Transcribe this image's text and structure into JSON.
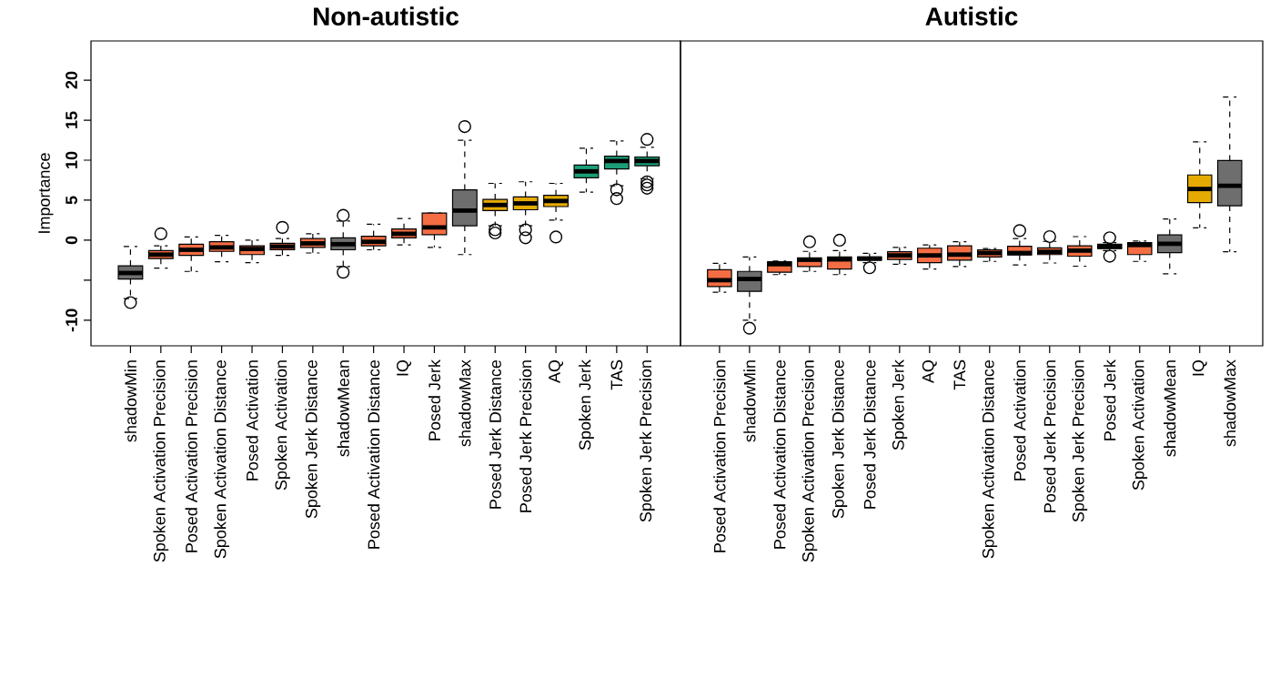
{
  "chart_data": [
    {
      "type": "box",
      "title": "Non-autistic",
      "ylabel": "Importance",
      "categories": [
        "shadowMin",
        "Spoken Activation Precision",
        "Posed Activation Precision",
        "Spoken Activation Distance",
        "Posed Activation",
        "Spoken Activation",
        "Spoken Jerk Distance",
        "shadowMean",
        "Posed Activation Distance",
        "IQ",
        "Posed Jerk",
        "shadowMax",
        "Posed Jerk Distance",
        "Posed Jerk Precision",
        "AQ",
        "Spoken Jerk",
        "TAS",
        "Spoken Jerk Precision"
      ],
      "boxes": [
        {
          "low": -7.3,
          "q1": -4.85,
          "median": -4.1,
          "q3": -3.2,
          "high": -0.8,
          "outliers": [
            -7.8
          ]
        },
        {
          "low": -3.5,
          "q1": -2.3,
          "median": -1.8,
          "q3": -1.3,
          "high": -0.7,
          "outliers": [
            0.8
          ]
        },
        {
          "low": -3.9,
          "q1": -1.9,
          "median": -1.2,
          "q3": -0.5,
          "high": 0.4
        },
        {
          "low": -2.7,
          "q1": -1.4,
          "median": -0.9,
          "q3": -0.2,
          "high": 0.6
        },
        {
          "low": -2.8,
          "q1": -1.8,
          "median": -1.1,
          "q3": -0.7,
          "high": 0.0
        },
        {
          "low": -1.9,
          "q1": -1.2,
          "median": -0.8,
          "q3": -0.4,
          "high": 0.2,
          "outliers": [
            1.6
          ]
        },
        {
          "low": -1.6,
          "q1": -0.9,
          "median": -0.4,
          "q3": 0.2,
          "high": 0.8
        },
        {
          "low": -3.3,
          "q1": -1.2,
          "median": -0.5,
          "q3": 0.3,
          "high": 2.4,
          "outliers": [
            3.1,
            -4.0
          ]
        },
        {
          "low": -1.2,
          "q1": -0.7,
          "median": -0.2,
          "q3": 0.5,
          "high": 2.0
        },
        {
          "low": -0.6,
          "q1": 0.3,
          "median": 0.8,
          "q3": 1.4,
          "high": 2.7
        },
        {
          "low": -0.9,
          "q1": 0.7,
          "median": 1.6,
          "q3": 3.4,
          "high": 3.4
        },
        {
          "low": -1.8,
          "q1": 1.8,
          "median": 3.7,
          "q3": 6.3,
          "high": 12.5,
          "outliers": [
            14.2
          ]
        },
        {
          "low": 1.8,
          "q1": 3.7,
          "median": 4.4,
          "q3": 5.1,
          "high": 7.1,
          "outliers": [
            1.3,
            0.9
          ]
        },
        {
          "low": 1.8,
          "q1": 3.8,
          "median": 4.6,
          "q3": 5.4,
          "high": 7.3,
          "outliers": [
            1.3,
            0.3
          ]
        },
        {
          "low": 2.5,
          "q1": 4.2,
          "median": 4.9,
          "q3": 5.6,
          "high": 7.1,
          "outliers": [
            0.4
          ]
        },
        {
          "low": 6.0,
          "q1": 7.8,
          "median": 8.6,
          "q3": 9.4,
          "high": 11.5
        },
        {
          "low": 6.8,
          "q1": 8.9,
          "median": 9.9,
          "q3": 10.5,
          "high": 12.4,
          "outliers": [
            6.3,
            5.2
          ]
        },
        {
          "low": 7.7,
          "q1": 9.3,
          "median": 9.9,
          "q3": 10.4,
          "high": 11.6,
          "outliers": [
            12.6,
            7.3,
            6.9,
            6.5
          ]
        }
      ],
      "colors": [
        "#6e6e6e",
        "#f46d43",
        "#f46d43",
        "#f46d43",
        "#f46d43",
        "#f46d43",
        "#f46d43",
        "#6e6e6e",
        "#f46d43",
        "#f46d43",
        "#f46d43",
        "#6e6e6e",
        "#e6ab02",
        "#e6ab02",
        "#e6ab02",
        "#1b9e77",
        "#1b9e77",
        "#1b9e77"
      ],
      "ylim": [
        -13.2,
        24.9
      ],
      "yticks": [
        -10,
        {
          "value": -5,
          "label": null
        },
        0,
        5,
        10,
        15,
        20
      ]
    },
    {
      "type": "box",
      "title": "Autistic",
      "categories": [
        "Posed Activation Precision",
        "shadowMin",
        "Posed Activation Distance",
        "Spoken Activation Precision",
        "Spoken Jerk Distance",
        "Posed Jerk Distance",
        "Spoken Jerk",
        "AQ",
        "TAS",
        "Spoken Activation Distance",
        "Posed Activation",
        "Posed Jerk Precision",
        "Spoken Jerk Precision",
        "Posed Jerk",
        "Spoken Activation",
        "shadowMean",
        "IQ",
        "shadowMax"
      ],
      "boxes": [
        {
          "low": -6.5,
          "q1": -5.8,
          "median": -5.0,
          "q3": -3.7,
          "high": -2.9
        },
        {
          "low": -10.0,
          "q1": -6.4,
          "median": -4.85,
          "q3": -3.9,
          "high": -2.1,
          "outliers": [
            -11.0
          ]
        },
        {
          "low": -4.3,
          "q1": -4.0,
          "median": -3.0,
          "q3": -2.7,
          "high": -2.6
        },
        {
          "low": -3.9,
          "q1": -3.3,
          "median": -2.45,
          "q3": -2.2,
          "high": -1.4,
          "outliers": [
            -0.2
          ]
        },
        {
          "low": -4.3,
          "q1": -3.6,
          "median": -2.4,
          "q3": -2.1,
          "high": -1.3,
          "outliers": [
            0.0
          ]
        },
        {
          "low": -2.8,
          "q1": -2.5,
          "median": -2.3,
          "q3": -2.1,
          "high": -1.65,
          "outliers": [
            -3.45
          ]
        },
        {
          "low": -3.0,
          "q1": -2.4,
          "median": -1.9,
          "q3": -1.45,
          "high": -0.9
        },
        {
          "low": -3.6,
          "q1": -2.8,
          "median": -1.9,
          "q3": -1.0,
          "high": -0.6
        },
        {
          "low": -3.3,
          "q1": -2.5,
          "median": -1.8,
          "q3": -0.7,
          "high": -0.2
        },
        {
          "low": -2.65,
          "q1": -2.1,
          "median": -1.6,
          "q3": -1.2,
          "high": -1.05
        },
        {
          "low": -3.1,
          "q1": -1.85,
          "median": -1.6,
          "q3": -0.75,
          "high": 0.2,
          "outliers": [
            1.2
          ]
        },
        {
          "low": -2.85,
          "q1": -1.8,
          "median": -1.45,
          "q3": -0.95,
          "high": -0.15,
          "outliers": [
            0.45
          ]
        },
        {
          "low": -3.25,
          "q1": -2.0,
          "median": -1.3,
          "q3": -0.7,
          "high": 0.45
        },
        {
          "low": -1.3,
          "q1": -1.05,
          "median": -0.8,
          "q3": -0.5,
          "high": -0.3,
          "outliers": [
            0.3,
            -2.0
          ]
        },
        {
          "low": -2.65,
          "q1": -1.8,
          "median": -0.6,
          "q3": -0.3,
          "high": -0.1
        },
        {
          "low": -4.2,
          "q1": -1.55,
          "median": -0.45,
          "q3": 0.65,
          "high": 2.65
        },
        {
          "low": 1.55,
          "q1": 4.7,
          "median": 6.4,
          "q3": 8.15,
          "high": 12.3
        },
        {
          "low": -1.45,
          "q1": 4.3,
          "median": 6.8,
          "q3": 9.95,
          "high": 17.9
        }
      ],
      "colors": [
        "#f46d43",
        "#6e6e6e",
        "#f46d43",
        "#f46d43",
        "#f46d43",
        "#f46d43",
        "#f46d43",
        "#f46d43",
        "#f46d43",
        "#f46d43",
        "#f46d43",
        "#f46d43",
        "#f46d43",
        "#f46d43",
        "#f46d43",
        "#6e6e6e",
        "#e6ab02",
        "#6e6e6e"
      ],
      "ylim": [
        -13.2,
        24.9
      ],
      "tick_labels": "x"
    }
  ]
}
